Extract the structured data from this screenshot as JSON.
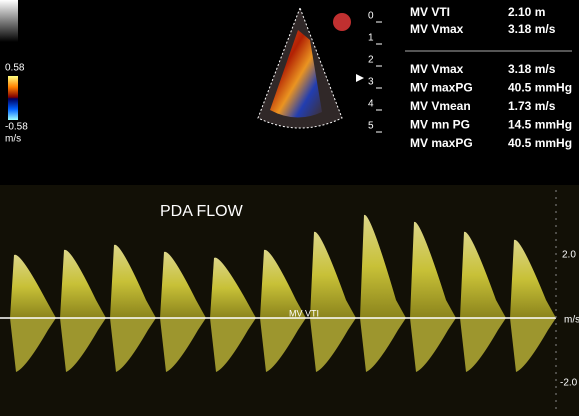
{
  "color_scale": {
    "max": "0.58",
    "min": "-0.58",
    "unit": "m/s"
  },
  "depth_scale": [
    "0",
    "1",
    "2",
    "3",
    "4",
    "5"
  ],
  "measurements": {
    "top": [
      {
        "label": "MV VTI",
        "value": "2.10 m"
      },
      {
        "label": "MV Vmax",
        "value": "3.18 m/s"
      }
    ],
    "bottom": [
      {
        "label": "MV Vmax",
        "value": "3.18 m/s"
      },
      {
        "label": "MV maxPG",
        "value": "40.5 mmHg"
      },
      {
        "label": "MV Vmean",
        "value": "1.73 m/s"
      },
      {
        "label": "MV mn PG",
        "value": "14.5 mmHg"
      },
      {
        "label": "MV maxPG",
        "value": "40.5 mmHg"
      }
    ]
  },
  "spectrum": {
    "title": "PDA FLOW",
    "marker": "MV VTI",
    "scale_top": "2.0",
    "scale_unit": "m/s",
    "scale_bottom": "-2.0"
  }
}
